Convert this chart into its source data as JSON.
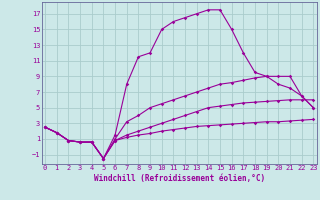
{
  "xlabel": "Windchill (Refroidissement éolien,°C)",
  "background_color": "#cce8e8",
  "grid_color": "#aacccc",
  "line_color": "#990099",
  "spine_color": "#666699",
  "x_ticks": [
    0,
    1,
    2,
    3,
    4,
    5,
    6,
    7,
    8,
    9,
    10,
    11,
    12,
    13,
    14,
    15,
    16,
    17,
    18,
    19,
    20,
    21,
    22,
    23
  ],
  "y_ticks": [
    -1,
    1,
    3,
    5,
    7,
    9,
    11,
    13,
    15,
    17
  ],
  "xlim": [
    -0.3,
    23.3
  ],
  "ylim": [
    -2.2,
    18.5
  ],
  "series": [
    {
      "x": [
        0,
        1,
        2,
        3,
        4,
        5,
        6,
        7,
        8,
        9,
        10,
        11,
        12,
        13,
        14,
        15,
        16,
        17,
        18,
        19,
        20,
        21,
        22,
        23
      ],
      "y": [
        2.5,
        1.8,
        0.8,
        0.6,
        0.6,
        -1.5,
        0.8,
        1.2,
        1.5,
        1.7,
        2.0,
        2.2,
        2.4,
        2.6,
        2.7,
        2.8,
        2.9,
        3.0,
        3.1,
        3.2,
        3.2,
        3.3,
        3.4,
        3.5
      ]
    },
    {
      "x": [
        0,
        1,
        2,
        3,
        4,
        5,
        6,
        7,
        8,
        9,
        10,
        11,
        12,
        13,
        14,
        15,
        16,
        17,
        18,
        19,
        20,
        21,
        22,
        23
      ],
      "y": [
        2.5,
        1.8,
        0.8,
        0.6,
        0.6,
        -1.5,
        0.8,
        1.5,
        2.0,
        2.5,
        3.0,
        3.5,
        4.0,
        4.5,
        5.0,
        5.2,
        5.4,
        5.6,
        5.7,
        5.8,
        5.9,
        6.0,
        6.0,
        6.0
      ]
    },
    {
      "x": [
        0,
        1,
        2,
        3,
        4,
        5,
        6,
        7,
        8,
        9,
        10,
        11,
        12,
        13,
        14,
        15,
        16,
        17,
        18,
        19,
        20,
        21,
        22,
        23
      ],
      "y": [
        2.5,
        1.8,
        0.8,
        0.6,
        0.6,
        -1.5,
        1.0,
        3.2,
        4.0,
        5.0,
        5.5,
        6.0,
        6.5,
        7.0,
        7.5,
        8.0,
        8.2,
        8.5,
        8.8,
        9.0,
        8.0,
        7.5,
        6.5,
        5.0
      ]
    },
    {
      "x": [
        0,
        1,
        2,
        3,
        4,
        5,
        6,
        7,
        8,
        9,
        10,
        11,
        12,
        13,
        14,
        15,
        16,
        17,
        18,
        19,
        20,
        21,
        22,
        23
      ],
      "y": [
        2.5,
        1.8,
        0.8,
        0.6,
        0.6,
        -1.5,
        1.5,
        8.0,
        11.5,
        12.0,
        15.0,
        16.0,
        16.5,
        17.0,
        17.5,
        17.5,
        15.0,
        12.0,
        9.5,
        9.0,
        9.0,
        9.0,
        6.5,
        5.0
      ]
    }
  ]
}
